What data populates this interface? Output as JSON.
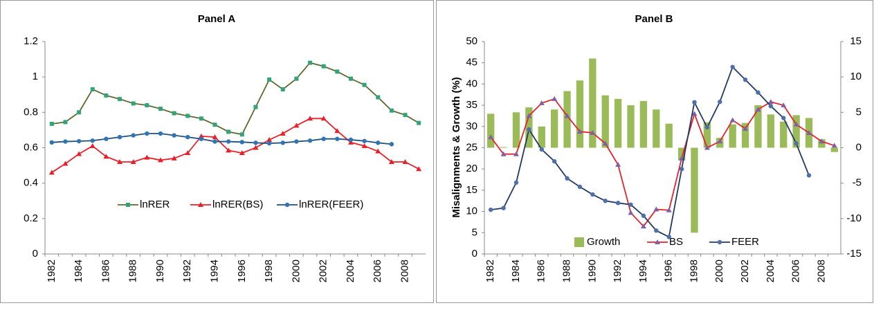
{
  "chart_data": [
    {
      "type": "line",
      "title": "Panel A",
      "categories": [
        "1982",
        null,
        "1984",
        null,
        "1986",
        null,
        "1988",
        null,
        "1990",
        null,
        "1992",
        null,
        "1994",
        null,
        "1996",
        null,
        "1998",
        null,
        "2000",
        null,
        "2002",
        null,
        "2004",
        null,
        "2006",
        null,
        "2008",
        null
      ],
      "ylim": [
        0,
        1.2
      ],
      "yticks": [
        0,
        0.2,
        0.4,
        0.6,
        0.8,
        1,
        1.2
      ],
      "series": [
        {
          "name": "lnRER",
          "color": "#5a6b2e",
          "marker_color": "#33a37a",
          "marker": "square",
          "values": [
            0.735,
            0.745,
            0.8,
            0.93,
            0.895,
            0.875,
            0.85,
            0.84,
            0.82,
            0.795,
            0.78,
            0.765,
            0.73,
            0.69,
            0.675,
            0.83,
            0.985,
            0.93,
            0.99,
            1.08,
            1.06,
            1.03,
            0.99,
            0.955,
            0.885,
            0.81,
            0.785,
            0.74
          ]
        },
        {
          "name": "lnRER(BS)",
          "color": "#e8202a",
          "marker_color": "#e8202a",
          "marker": "triangle",
          "values": [
            0.46,
            0.51,
            0.565,
            0.61,
            0.55,
            0.52,
            0.52,
            0.545,
            0.53,
            0.54,
            0.57,
            0.665,
            0.66,
            0.585,
            0.57,
            0.6,
            0.645,
            0.68,
            0.725,
            0.765,
            0.765,
            0.695,
            0.63,
            0.61,
            0.58,
            0.52,
            0.52,
            0.48
          ]
        },
        {
          "name": "lnRER(FEER)",
          "color": "#1f4e79",
          "marker_color": "#2e75b6",
          "marker": "circle",
          "values": [
            0.63,
            0.635,
            0.637,
            0.64,
            0.65,
            0.66,
            0.67,
            0.68,
            0.68,
            0.67,
            0.66,
            0.65,
            0.635,
            0.635,
            0.632,
            0.628,
            0.625,
            0.628,
            0.635,
            0.64,
            0.65,
            0.65,
            0.645,
            0.638,
            0.628,
            0.62,
            null,
            null
          ]
        }
      ]
    },
    {
      "type": "combo",
      "title": "Panel B",
      "y_label": "Misalignments & Growth (%)",
      "categories": [
        "1982",
        null,
        "1984",
        null,
        "1986",
        null,
        "1988",
        null,
        "1990",
        null,
        "1992",
        null,
        "1994",
        null,
        "1996",
        null,
        "1998",
        null,
        "2000",
        null,
        "2002",
        null,
        "2004",
        null,
        "2006",
        null,
        "2008",
        null
      ],
      "ylim": [
        0,
        50
      ],
      "yticks": [
        0,
        5,
        10,
        15,
        20,
        25,
        30,
        35,
        40,
        45,
        50
      ],
      "y2lim": [
        -15,
        15
      ],
      "y2ticks": [
        -15,
        -10,
        -5,
        0,
        5,
        10,
        15
      ],
      "series": [
        {
          "name": "Growth",
          "type": "bar",
          "axis": "y2",
          "color": "#9bbb59",
          "values": [
            4.8,
            0.1,
            5.0,
            5.7,
            3.0,
            5.4,
            8.0,
            9.5,
            12.6,
            7.4,
            6.9,
            6.0,
            6.6,
            5.4,
            3.4,
            -1.8,
            -12,
            3.6,
            1.4,
            3.3,
            3.5,
            6.0,
            4.7,
            3.7,
            4.6,
            4.2,
            1.2,
            -0.6
          ]
        },
        {
          "name": "BS",
          "type": "line",
          "color": "#e8202a",
          "marker_color": "#7f5fa8",
          "marker": "triangle",
          "values": [
            27.5,
            23.5,
            23.5,
            32.5,
            35.5,
            36.5,
            32.5,
            28.8,
            28.5,
            26,
            21,
            9.7,
            6.5,
            10.5,
            10.3,
            22.5,
            33,
            25,
            26.5,
            31.5,
            29.5,
            34,
            35.8,
            35,
            30.5,
            28.5,
            26.5,
            25.5
          ]
        },
        {
          "name": "FEER",
          "type": "line",
          "color": "#1f3864",
          "marker_color": "#4f6fa8",
          "marker": "circle",
          "values": [
            10.4,
            10.8,
            16.8,
            29.3,
            24.6,
            21.8,
            17.8,
            15.8,
            14,
            12.5,
            12,
            11.6,
            9,
            5.5,
            4,
            20,
            35.7,
            29.8,
            35.8,
            44,
            41,
            38,
            34.8,
            32,
            26,
            18.5,
            null,
            null
          ]
        }
      ]
    }
  ]
}
